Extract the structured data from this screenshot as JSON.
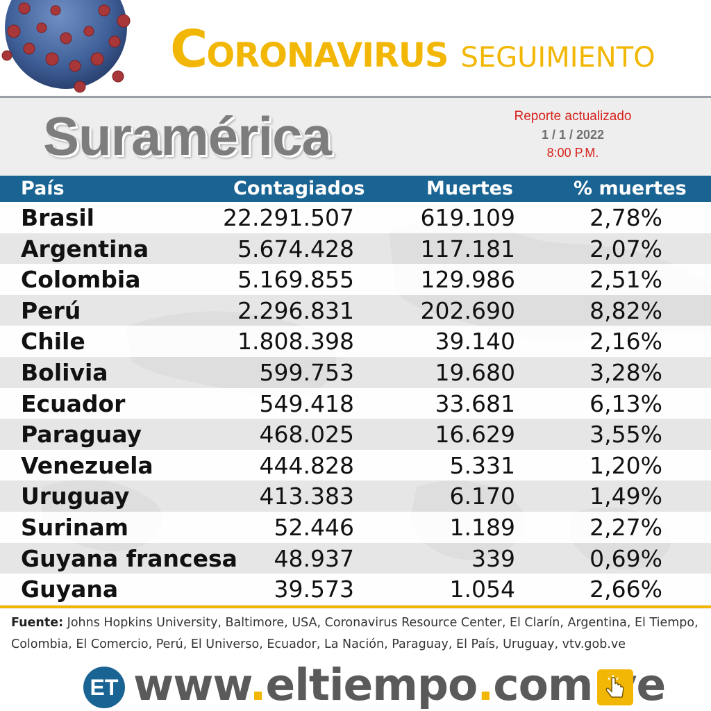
{
  "header": {
    "title_first_letter": "C",
    "title_rest": "ORONAVIRUS",
    "title_second": "SEGUIMIENTO"
  },
  "region": "Suramérica",
  "report": {
    "label": "Reporte actualizado",
    "date": "1 / 1 / 2022",
    "time": "8:00 P.M."
  },
  "table": {
    "columns": [
      "País",
      "Contagiados",
      "Muertes",
      "% muertes"
    ],
    "rows": [
      {
        "country": "Brasil",
        "cases": "22.291.507",
        "deaths": "619.109",
        "pct": "2,78%"
      },
      {
        "country": "Argentina",
        "cases": "5.674.428",
        "deaths": "117.181",
        "pct": "2,07%"
      },
      {
        "country": "Colombia",
        "cases": "5.169.855",
        "deaths": "129.986",
        "pct": "2,51%"
      },
      {
        "country": "Perú",
        "cases": "2.296.831",
        "deaths": "202.690",
        "pct": "8,82%"
      },
      {
        "country": "Chile",
        "cases": "1.808.398",
        "deaths": "39.140",
        "pct": "2,16%"
      },
      {
        "country": "Bolivia",
        "cases": "599.753",
        "deaths": "19.680",
        "pct": "3,28%"
      },
      {
        "country": "Ecuador",
        "cases": "549.418",
        "deaths": "33.681",
        "pct": "6,13%"
      },
      {
        "country": "Paraguay",
        "cases": "468.025",
        "deaths": "16.629",
        "pct": "3,55%"
      },
      {
        "country": "Venezuela",
        "cases": "444.828",
        "deaths": "5.331",
        "pct": "1,20%"
      },
      {
        "country": "Uruguay",
        "cases": "413.383",
        "deaths": "6.170",
        "pct": "1,49%"
      },
      {
        "country": "Surinam",
        "cases": "52.446",
        "deaths": "1.189",
        "pct": "2,27%"
      },
      {
        "country": "Guyana francesa",
        "cases": "48.937",
        "deaths": "339",
        "pct": "0,69%"
      },
      {
        "country": "Guyana",
        "cases": "39.573",
        "deaths": "1.054",
        "pct": "2,66%"
      }
    ]
  },
  "source": {
    "label": "Fuente:",
    "text": " Johns Hopkins University, Baltimore, USA, Coronavirus Resource Center,  El Clarín, Argentina, El Tiempo, Colombia, El Comercio, Perú, El Universo, Ecuador, La Nación, Paraguay, El País, Uruguay, vtv.gob.ve"
  },
  "footer": {
    "logo_text": "ET",
    "url_parts": [
      "www",
      ".",
      "eltiempo",
      ".",
      "com",
      ".",
      "ve"
    ]
  },
  "colors": {
    "title_yellow": "#f2b705",
    "header_blue": "#1a6494",
    "report_red": "#d7231c",
    "region_gray": "#7d7d7d"
  },
  "icons": [
    "coronavirus-image",
    "click-hand-icon"
  ]
}
